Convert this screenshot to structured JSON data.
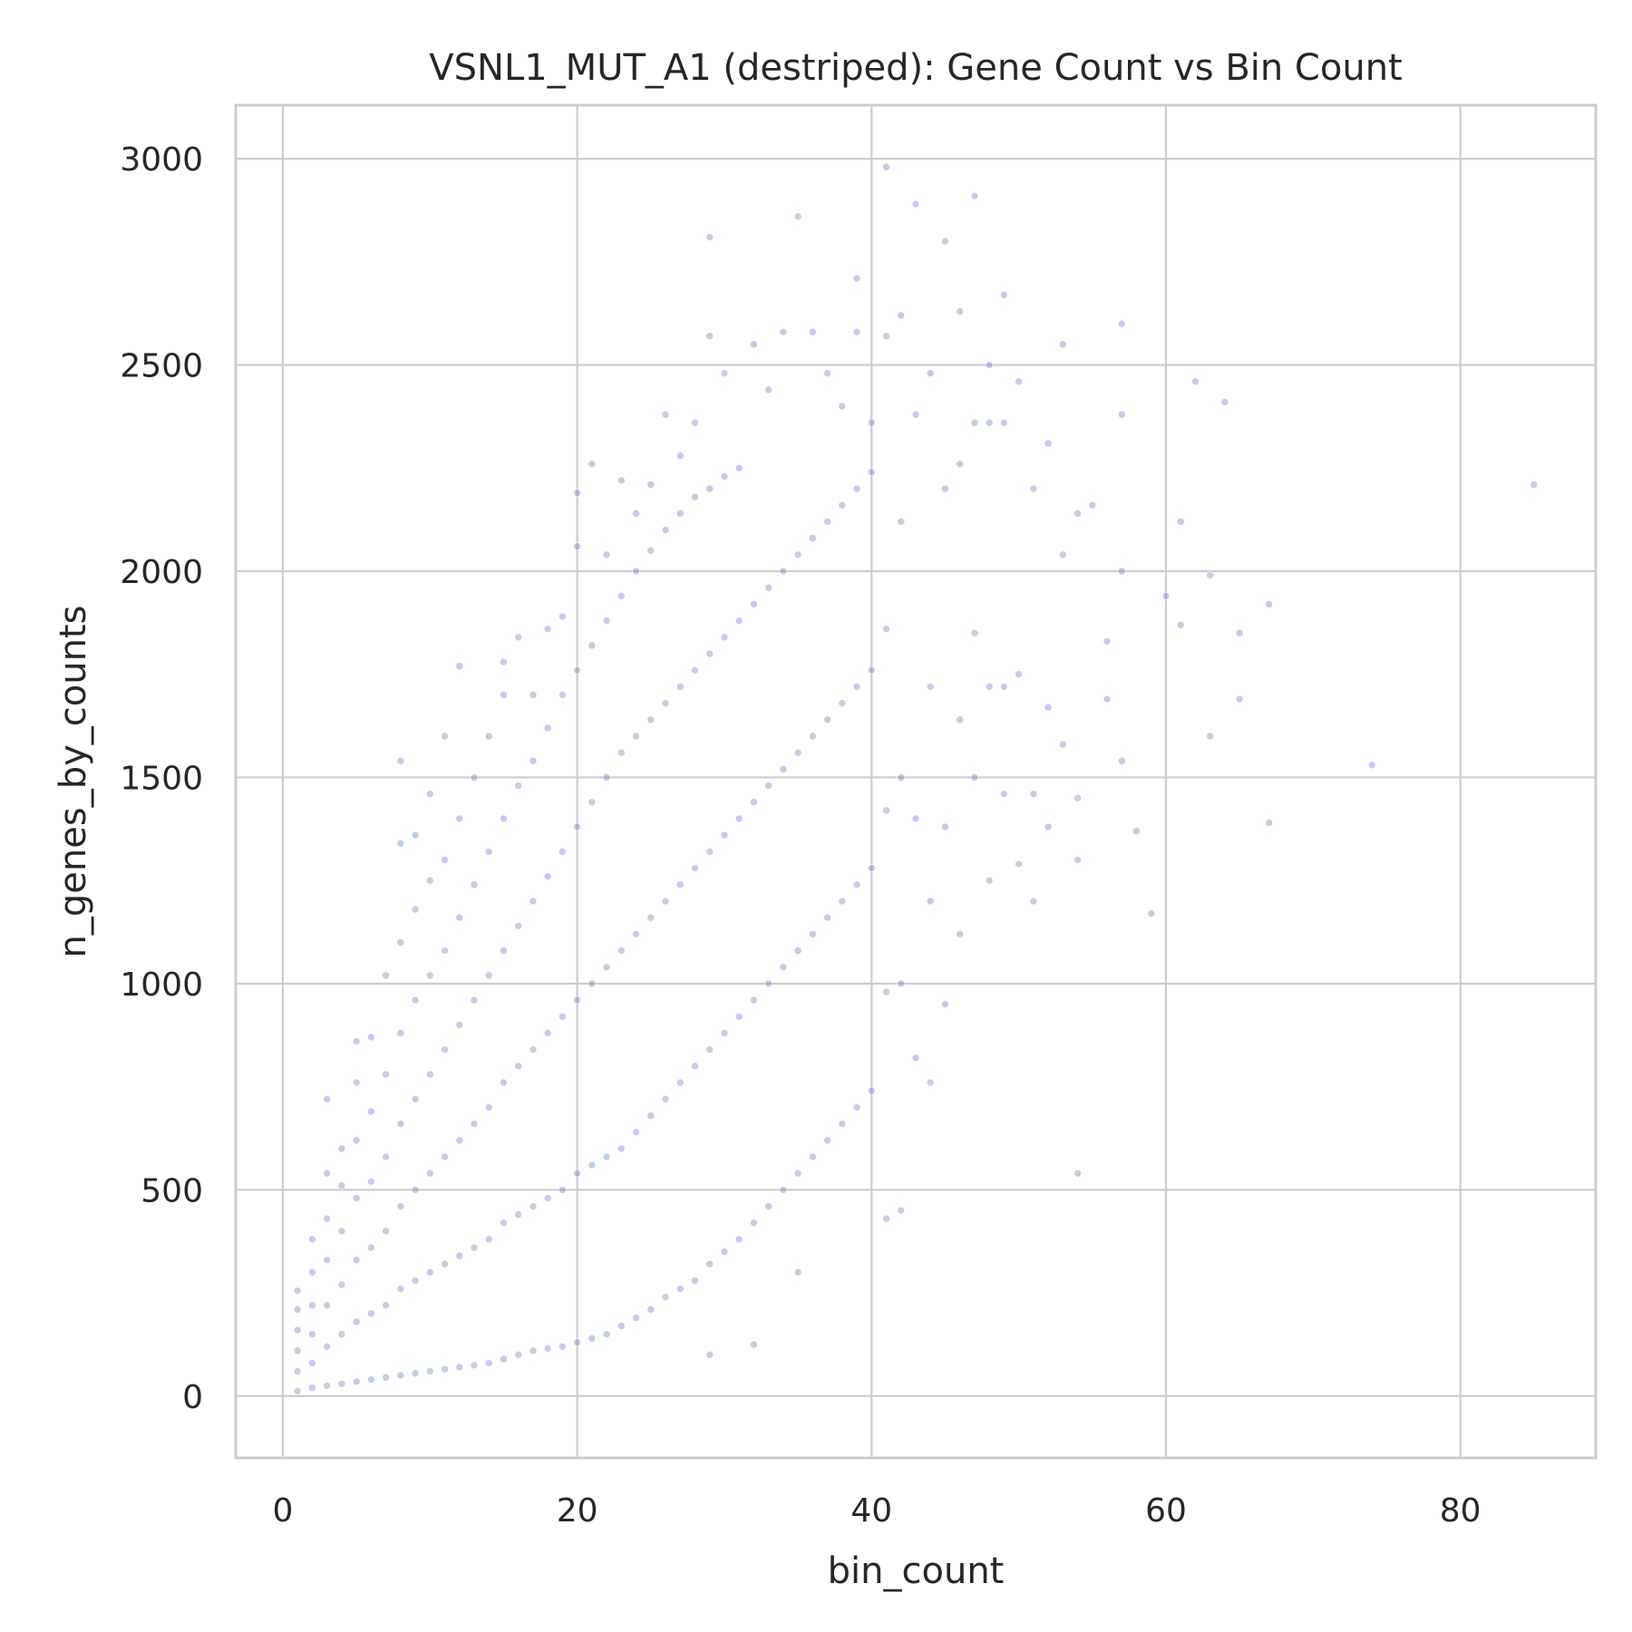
{
  "chart_data": {
    "type": "scatter",
    "title": "VSNL1_MUT_A1 (destriped): Gene Count vs Bin Count",
    "xlabel": "bin_count",
    "ylabel": "n_genes_by_counts",
    "xlim": [
      -3.2,
      89.2
    ],
    "ylim": [
      -150,
      3130
    ],
    "x_ticks": [
      0,
      20,
      40,
      60,
      80
    ],
    "y_ticks": [
      0,
      500,
      1000,
      1500,
      2000,
      2500,
      3000
    ],
    "grid": true,
    "legend": "none",
    "series": [
      {
        "color": "#4c72b0",
        "opacity": 0.35,
        "points": [
          [
            1,
            12
          ],
          [
            1,
            60
          ],
          [
            1,
            110
          ],
          [
            1,
            160
          ],
          [
            1,
            210
          ],
          [
            1,
            255
          ],
          [
            2,
            20
          ],
          [
            2,
            80
          ],
          [
            2,
            150
          ],
          [
            2,
            220
          ],
          [
            2,
            300
          ],
          [
            2,
            380
          ],
          [
            3,
            25
          ],
          [
            3,
            120
          ],
          [
            3,
            220
          ],
          [
            3,
            330
          ],
          [
            3,
            430
          ],
          [
            3,
            540
          ],
          [
            3,
            720
          ],
          [
            4,
            30
          ],
          [
            4,
            150
          ],
          [
            4,
            270
          ],
          [
            4,
            400
          ],
          [
            4,
            510
          ],
          [
            4,
            600
          ],
          [
            5,
            35
          ],
          [
            5,
            180
          ],
          [
            5,
            330
          ],
          [
            5,
            480
          ],
          [
            5,
            620
          ],
          [
            5,
            760
          ],
          [
            5,
            860
          ],
          [
            6,
            40
          ],
          [
            6,
            200
          ],
          [
            6,
            360
          ],
          [
            6,
            520
          ],
          [
            6,
            690
          ],
          [
            6,
            870
          ],
          [
            7,
            45
          ],
          [
            7,
            220
          ],
          [
            7,
            400
          ],
          [
            7,
            580
          ],
          [
            7,
            780
          ],
          [
            7,
            1020
          ],
          [
            8,
            50
          ],
          [
            8,
            260
          ],
          [
            8,
            460
          ],
          [
            8,
            660
          ],
          [
            8,
            880
          ],
          [
            8,
            1100
          ],
          [
            8,
            1340
          ],
          [
            8,
            1540
          ],
          [
            9,
            55
          ],
          [
            9,
            280
          ],
          [
            9,
            500
          ],
          [
            9,
            720
          ],
          [
            9,
            960
          ],
          [
            9,
            1180
          ],
          [
            9,
            1360
          ],
          [
            10,
            60
          ],
          [
            10,
            300
          ],
          [
            10,
            540
          ],
          [
            10,
            780
          ],
          [
            10,
            1020
          ],
          [
            10,
            1250
          ],
          [
            10,
            1460
          ],
          [
            11,
            65
          ],
          [
            11,
            320
          ],
          [
            11,
            580
          ],
          [
            11,
            840
          ],
          [
            11,
            1080
          ],
          [
            11,
            1300
          ],
          [
            11,
            1600
          ],
          [
            12,
            70
          ],
          [
            12,
            340
          ],
          [
            12,
            620
          ],
          [
            12,
            900
          ],
          [
            12,
            1160
          ],
          [
            12,
            1400
          ],
          [
            12,
            1770
          ],
          [
            13,
            75
          ],
          [
            13,
            360
          ],
          [
            13,
            660
          ],
          [
            13,
            960
          ],
          [
            13,
            1240
          ],
          [
            13,
            1500
          ],
          [
            14,
            80
          ],
          [
            14,
            380
          ],
          [
            14,
            700
          ],
          [
            14,
            1020
          ],
          [
            14,
            1320
          ],
          [
            14,
            1600
          ],
          [
            15,
            90
          ],
          [
            15,
            420
          ],
          [
            15,
            760
          ],
          [
            15,
            1080
          ],
          [
            15,
            1400
          ],
          [
            15,
            1700
          ],
          [
            15,
            1780
          ],
          [
            16,
            100
          ],
          [
            16,
            440
          ],
          [
            16,
            800
          ],
          [
            16,
            1140
          ],
          [
            16,
            1480
          ],
          [
            16,
            1840
          ],
          [
            17,
            110
          ],
          [
            17,
            460
          ],
          [
            17,
            840
          ],
          [
            17,
            1200
          ],
          [
            17,
            1540
          ],
          [
            17,
            1700
          ],
          [
            18,
            115
          ],
          [
            18,
            480
          ],
          [
            18,
            880
          ],
          [
            18,
            1260
          ],
          [
            18,
            1620
          ],
          [
            18,
            1860
          ],
          [
            19,
            120
          ],
          [
            19,
            500
          ],
          [
            19,
            920
          ],
          [
            19,
            1320
          ],
          [
            19,
            1700
          ],
          [
            19,
            1890
          ],
          [
            20,
            130
          ],
          [
            20,
            540
          ],
          [
            20,
            960
          ],
          [
            20,
            1380
          ],
          [
            20,
            1760
          ],
          [
            20,
            2060
          ],
          [
            20,
            2190
          ],
          [
            21,
            140
          ],
          [
            21,
            560
          ],
          [
            21,
            1000
          ],
          [
            21,
            1440
          ],
          [
            21,
            1820
          ],
          [
            21,
            2260
          ],
          [
            22,
            150
          ],
          [
            22,
            580
          ],
          [
            22,
            1040
          ],
          [
            22,
            1500
          ],
          [
            22,
            1880
          ],
          [
            22,
            2040
          ],
          [
            23,
            170
          ],
          [
            23,
            600
          ],
          [
            23,
            1080
          ],
          [
            23,
            1560
          ],
          [
            23,
            1940
          ],
          [
            23,
            2220
          ],
          [
            24,
            190
          ],
          [
            24,
            640
          ],
          [
            24,
            1120
          ],
          [
            24,
            1600
          ],
          [
            24,
            2000
          ],
          [
            24,
            2140
          ],
          [
            25,
            210
          ],
          [
            25,
            680
          ],
          [
            25,
            1160
          ],
          [
            25,
            1640
          ],
          [
            25,
            2050
          ],
          [
            25,
            2210
          ],
          [
            26,
            240
          ],
          [
            26,
            720
          ],
          [
            26,
            1200
          ],
          [
            26,
            1680
          ],
          [
            26,
            2100
          ],
          [
            26,
            2380
          ],
          [
            27,
            260
          ],
          [
            27,
            760
          ],
          [
            27,
            1240
          ],
          [
            27,
            1720
          ],
          [
            27,
            2140
          ],
          [
            27,
            2280
          ],
          [
            28,
            280
          ],
          [
            28,
            800
          ],
          [
            28,
            1280
          ],
          [
            28,
            1760
          ],
          [
            28,
            2180
          ],
          [
            28,
            2360
          ],
          [
            29,
            100
          ],
          [
            29,
            320
          ],
          [
            29,
            840
          ],
          [
            29,
            1320
          ],
          [
            29,
            1800
          ],
          [
            29,
            2200
          ],
          [
            29,
            2810
          ],
          [
            29,
            2570
          ],
          [
            30,
            350
          ],
          [
            30,
            880
          ],
          [
            30,
            1360
          ],
          [
            30,
            1840
          ],
          [
            30,
            2230
          ],
          [
            30,
            2480
          ],
          [
            31,
            380
          ],
          [
            31,
            920
          ],
          [
            31,
            1400
          ],
          [
            31,
            1880
          ],
          [
            31,
            2250
          ],
          [
            32,
            125
          ],
          [
            32,
            420
          ],
          [
            32,
            960
          ],
          [
            32,
            1440
          ],
          [
            32,
            1920
          ],
          [
            32,
            2550
          ],
          [
            33,
            460
          ],
          [
            33,
            1000
          ],
          [
            33,
            1480
          ],
          [
            33,
            1960
          ],
          [
            33,
            2440
          ],
          [
            34,
            500
          ],
          [
            34,
            1040
          ],
          [
            34,
            1520
          ],
          [
            34,
            2000
          ],
          [
            34,
            2580
          ],
          [
            35,
            300
          ],
          [
            35,
            540
          ],
          [
            35,
            1080
          ],
          [
            35,
            1560
          ],
          [
            35,
            2040
          ],
          [
            35,
            2860
          ],
          [
            36,
            580
          ],
          [
            36,
            1120
          ],
          [
            36,
            1600
          ],
          [
            36,
            2080
          ],
          [
            36,
            2580
          ],
          [
            37,
            620
          ],
          [
            37,
            1160
          ],
          [
            37,
            1640
          ],
          [
            37,
            2120
          ],
          [
            37,
            2480
          ],
          [
            38,
            660
          ],
          [
            38,
            1200
          ],
          [
            38,
            1680
          ],
          [
            38,
            2160
          ],
          [
            38,
            2400
          ],
          [
            39,
            700
          ],
          [
            39,
            1240
          ],
          [
            39,
            1720
          ],
          [
            39,
            2200
          ],
          [
            39,
            2710
          ],
          [
            39,
            2580
          ],
          [
            40,
            740
          ],
          [
            40,
            1280
          ],
          [
            40,
            1760
          ],
          [
            40,
            2240
          ],
          [
            40,
            2360
          ],
          [
            41,
            430
          ],
          [
            41,
            980
          ],
          [
            41,
            1420
          ],
          [
            41,
            1860
          ],
          [
            41,
            2980
          ],
          [
            41,
            2570
          ],
          [
            42,
            450
          ],
          [
            42,
            1000
          ],
          [
            42,
            1500
          ],
          [
            42,
            2120
          ],
          [
            42,
            2620
          ],
          [
            43,
            820
          ],
          [
            43,
            1400
          ],
          [
            43,
            2380
          ],
          [
            43,
            2890
          ],
          [
            44,
            760
          ],
          [
            44,
            1200
          ],
          [
            44,
            1720
          ],
          [
            44,
            2480
          ],
          [
            45,
            950
          ],
          [
            45,
            1380
          ],
          [
            45,
            2200
          ],
          [
            45,
            2800
          ],
          [
            46,
            1120
          ],
          [
            46,
            1640
          ],
          [
            46,
            2260
          ],
          [
            46,
            2630
          ],
          [
            47,
            1500
          ],
          [
            47,
            1850
          ],
          [
            47,
            2360
          ],
          [
            47,
            2910
          ],
          [
            48,
            1250
          ],
          [
            48,
            1720
          ],
          [
            48,
            2360
          ],
          [
            48,
            2500
          ],
          [
            49,
            1460
          ],
          [
            49,
            1720
          ],
          [
            49,
            2360
          ],
          [
            49,
            2670
          ],
          [
            50,
            1290
          ],
          [
            50,
            1750
          ],
          [
            50,
            2460
          ],
          [
            51,
            1200
          ],
          [
            51,
            1460
          ],
          [
            51,
            2200
          ],
          [
            52,
            1380
          ],
          [
            52,
            1670
          ],
          [
            52,
            2310
          ],
          [
            53,
            1580
          ],
          [
            53,
            2040
          ],
          [
            53,
            2550
          ],
          [
            54,
            540
          ],
          [
            54,
            1300
          ],
          [
            54,
            1450
          ],
          [
            54,
            2140
          ],
          [
            55,
            2160
          ],
          [
            56,
            1690
          ],
          [
            56,
            1830
          ],
          [
            57,
            1540
          ],
          [
            57,
            2000
          ],
          [
            57,
            2380
          ],
          [
            57,
            2600
          ],
          [
            58,
            1370
          ],
          [
            59,
            1170
          ],
          [
            60,
            1940
          ],
          [
            61,
            1870
          ],
          [
            61,
            2120
          ],
          [
            62,
            2460
          ],
          [
            63,
            1600
          ],
          [
            63,
            1990
          ],
          [
            64,
            2410
          ],
          [
            65,
            1690
          ],
          [
            65,
            1850
          ],
          [
            67,
            1390
          ],
          [
            67,
            1920
          ],
          [
            74,
            1530
          ],
          [
            85,
            2210
          ]
        ]
      }
    ]
  }
}
